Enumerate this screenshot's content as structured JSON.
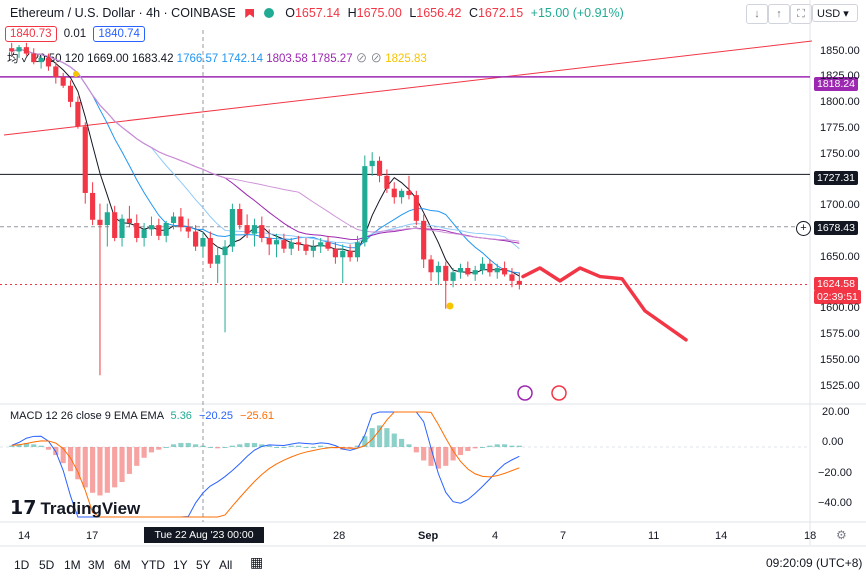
{
  "header": {
    "symbol": "Ethereum / U.S. Dollar · 4h · COINBASE",
    "ohlc": {
      "o_lbl": "O",
      "o": "1657.14",
      "h_lbl": "H",
      "h": "1675.00",
      "l_lbl": "L",
      "l": "1656.42",
      "c_lbl": "C",
      "c": "1672.15",
      "change": "+15.00 (+0.91%)"
    },
    "currency": "USD"
  },
  "price_boxes": {
    "sell": "1840.73",
    "spread": "0.01",
    "buy": "1840.74"
  },
  "ma_legend": {
    "prefix": "均 ✓ 20 50 120",
    "values": [
      "1669.00",
      "1683.42",
      "1766.57",
      "1742.14",
      "1803.58",
      "1785.27",
      "⊘",
      "⊘",
      "1825.83"
    ]
  },
  "macd_legend": {
    "label": "MACD 12 26 close 9 EMA EMA",
    "hist": "5.36",
    "macd": "−20.25",
    "signal": "−25.61"
  },
  "colors": {
    "up": "#22ab94",
    "down": "#f23645",
    "macd": "#2962ff",
    "signal": "#ff6d00"
  },
  "price_axis": {
    "ticks": [
      "1850.00",
      "1825.00",
      "1800.00",
      "1775.00",
      "1750.00",
      "1700.00",
      "1650.00",
      "1600.00",
      "1575.00",
      "1550.00",
      "1525.00"
    ]
  },
  "macd_axis": {
    "ticks": [
      "20.00",
      "0.00",
      "−20.00",
      "−40.00"
    ]
  },
  "price_labels": {
    "hline_1": "1818.24",
    "hline_2": "1727.31",
    "crosshair": "1678.43",
    "last": "1624.58",
    "countdown": "02:39:51"
  },
  "x_axis": {
    "ticks": [
      "14",
      "17",
      "28",
      "Sep",
      "4",
      "7",
      "11",
      "14",
      "18"
    ],
    "crosshair": "Tue 22 Aug '23   00:00"
  },
  "timeframes": [
    "1D",
    "5D",
    "1M",
    "3M",
    "6M",
    "YTD",
    "1Y",
    "5Y",
    "All"
  ],
  "clock": "09:20:09 (UTC+8)",
  "logo": "TradingView",
  "chart_data": {
    "type": "candlestick",
    "ylim": [
      1515,
      1862
    ],
    "candles": [
      [
        1845,
        1850,
        1838,
        1842
      ],
      [
        1842,
        1848,
        1836,
        1846
      ],
      [
        1846,
        1850,
        1838,
        1840
      ],
      [
        1840,
        1845,
        1830,
        1832
      ],
      [
        1832,
        1838,
        1826,
        1836
      ],
      [
        1836,
        1840,
        1824,
        1828
      ],
      [
        1828,
        1832,
        1812,
        1818
      ],
      [
        1818,
        1822,
        1808,
        1810
      ],
      [
        1810,
        1815,
        1790,
        1795
      ],
      [
        1795,
        1800,
        1770,
        1772
      ],
      [
        1772,
        1776,
        1700,
        1710
      ],
      [
        1710,
        1720,
        1680,
        1685
      ],
      [
        1685,
        1700,
        1540,
        1680
      ],
      [
        1680,
        1700,
        1660,
        1692
      ],
      [
        1692,
        1698,
        1665,
        1668
      ],
      [
        1668,
        1690,
        1660,
        1686
      ],
      [
        1686,
        1698,
        1678,
        1682
      ],
      [
        1682,
        1690,
        1664,
        1668
      ],
      [
        1668,
        1682,
        1660,
        1676
      ],
      [
        1676,
        1688,
        1670,
        1680
      ],
      [
        1680,
        1686,
        1666,
        1670
      ],
      [
        1670,
        1684,
        1664,
        1682
      ],
      [
        1682,
        1692,
        1676,
        1688
      ],
      [
        1688,
        1696,
        1674,
        1678
      ],
      [
        1678,
        1686,
        1668,
        1674
      ],
      [
        1674,
        1680,
        1656,
        1660
      ],
      [
        1660,
        1674,
        1650,
        1668
      ],
      [
        1668,
        1674,
        1640,
        1644
      ],
      [
        1644,
        1660,
        1626,
        1652
      ],
      [
        1652,
        1666,
        1580,
        1660
      ],
      [
        1660,
        1700,
        1655,
        1695
      ],
      [
        1695,
        1700,
        1676,
        1680
      ],
      [
        1680,
        1690,
        1668,
        1672
      ],
      [
        1672,
        1686,
        1660,
        1680
      ],
      [
        1680,
        1688,
        1664,
        1668
      ],
      [
        1668,
        1676,
        1652,
        1662
      ],
      [
        1662,
        1672,
        1650,
        1666
      ],
      [
        1666,
        1672,
        1654,
        1658
      ],
      [
        1658,
        1668,
        1652,
        1664
      ],
      [
        1664,
        1670,
        1656,
        1662
      ],
      [
        1662,
        1668,
        1652,
        1656
      ],
      [
        1656,
        1666,
        1650,
        1660
      ],
      [
        1660,
        1668,
        1654,
        1664
      ],
      [
        1664,
        1670,
        1656,
        1658
      ],
      [
        1658,
        1664,
        1644,
        1650
      ],
      [
        1650,
        1662,
        1626,
        1656
      ],
      [
        1656,
        1662,
        1646,
        1650
      ],
      [
        1650,
        1670,
        1646,
        1664
      ],
      [
        1664,
        1745,
        1660,
        1735
      ],
      [
        1735,
        1748,
        1726,
        1740
      ],
      [
        1740,
        1744,
        1720,
        1726
      ],
      [
        1726,
        1732,
        1710,
        1714
      ],
      [
        1714,
        1720,
        1700,
        1706
      ],
      [
        1706,
        1714,
        1700,
        1712
      ],
      [
        1712,
        1726,
        1704,
        1708
      ],
      [
        1708,
        1712,
        1680,
        1684
      ],
      [
        1684,
        1690,
        1640,
        1648
      ],
      [
        1648,
        1652,
        1628,
        1636
      ],
      [
        1636,
        1646,
        1624,
        1642
      ],
      [
        1642,
        1646,
        1602,
        1628
      ],
      [
        1628,
        1640,
        1622,
        1636
      ],
      [
        1636,
        1644,
        1630,
        1640
      ],
      [
        1640,
        1646,
        1632,
        1634
      ],
      [
        1634,
        1642,
        1628,
        1638
      ],
      [
        1638,
        1650,
        1634,
        1644
      ],
      [
        1644,
        1648,
        1632,
        1636
      ],
      [
        1636,
        1644,
        1630,
        1640
      ],
      [
        1640,
        1646,
        1632,
        1634
      ],
      [
        1634,
        1640,
        1622,
        1628
      ],
      [
        1628,
        1636,
        1620,
        1624.58
      ]
    ],
    "forecast_path": [
      [
        1624,
        1632
      ],
      [
        1630,
        1640
      ],
      [
        1636,
        1628
      ],
      [
        1642,
        1640
      ],
      [
        1648,
        1632
      ],
      [
        1655,
        1630
      ],
      [
        1660,
        1600
      ],
      [
        1666,
        1573
      ]
    ],
    "horizontal_lines": [
      1818.24,
      1727.31
    ],
    "trend_line": [
      [
        1785,
        1840
      ],
      [
        1878,
        1880
      ]
    ],
    "macd": {
      "ylim": [
        -52,
        26
      ],
      "hist": [
        1,
        2,
        3,
        2,
        1,
        -2,
        -6,
        -12,
        -18,
        -24,
        -30,
        -34,
        -36,
        -34,
        -30,
        -26,
        -20,
        -14,
        -8,
        -4,
        -2,
        0,
        2,
        3,
        3,
        2,
        1,
        0,
        -1,
        0,
        1,
        2,
        3,
        3,
        2,
        1,
        0,
        0,
        1,
        1,
        0,
        0,
        1,
        0,
        -1,
        -2,
        -1,
        1,
        8,
        14,
        16,
        14,
        10,
        6,
        2,
        -4,
        -10,
        -14,
        -16,
        -14,
        -10,
        -6,
        -3,
        -1,
        0,
        1,
        2,
        2,
        1,
        1
      ]
    }
  }
}
